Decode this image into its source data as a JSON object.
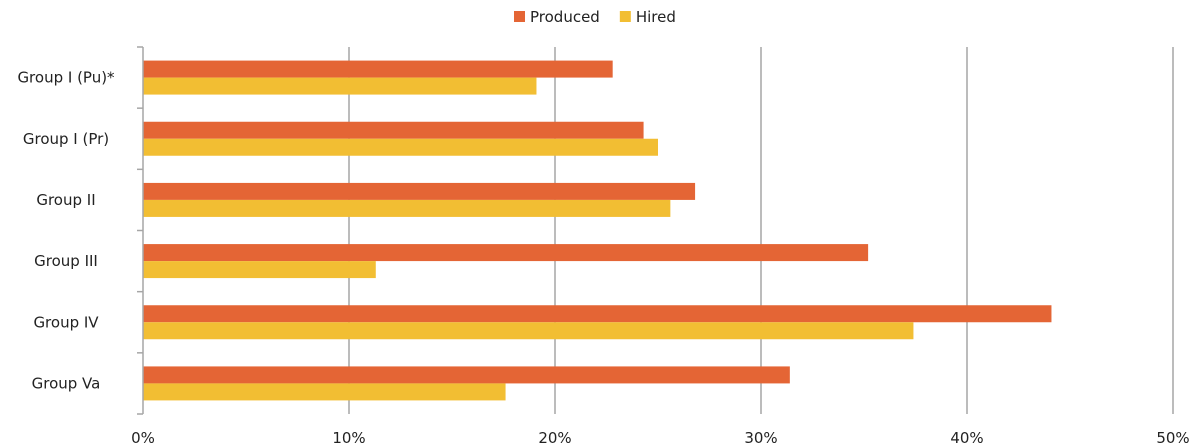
{
  "chart_data": {
    "type": "bar",
    "orientation": "horizontal",
    "categories": [
      "Group I (Pu)*",
      "Group I (Pr)",
      "Group II",
      "Group III",
      "Group IV",
      "Group Va"
    ],
    "series": [
      {
        "name": "Produced",
        "color": "#E46535",
        "values": [
          22.8,
          24.3,
          26.8,
          35.2,
          44.1,
          31.4
        ]
      },
      {
        "name": "Hired",
        "color": "#F2BE33",
        "values": [
          19.1,
          25.0,
          25.6,
          11.3,
          37.4,
          17.6
        ]
      }
    ],
    "xlim": [
      0,
      50
    ],
    "xticks": [
      "0%",
      "10%",
      "20%",
      "30%",
      "40%",
      "50%"
    ],
    "grid": true,
    "legend_position": "top-center"
  }
}
